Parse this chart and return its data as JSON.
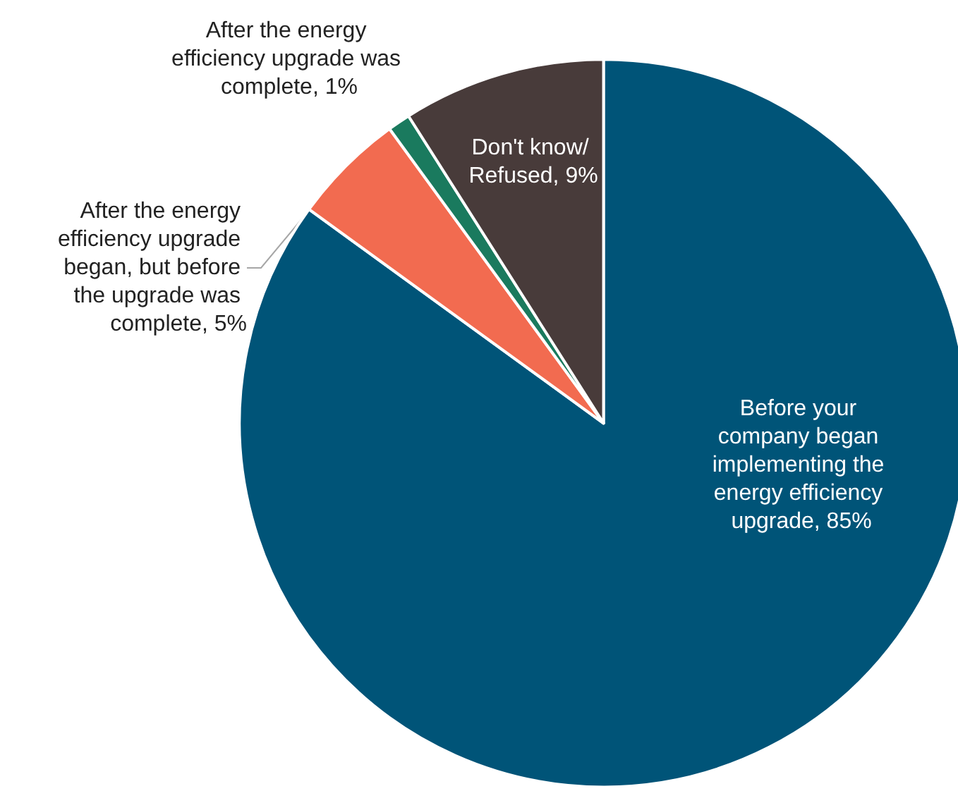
{
  "chart_data": {
    "type": "pie",
    "categories": [
      "Before your company began implementing the energy efficiency upgrade",
      "After the energy efficiency upgrade began, but before the upgrade was complete",
      "After the energy efficiency upgrade was complete",
      "Don't know/ Refused"
    ],
    "values": [
      85,
      5,
      1,
      9
    ],
    "value_labels": [
      "85%",
      "5%",
      "1%",
      "9%"
    ],
    "colors": [
      "#005478",
      "#f26b50",
      "#1a7a5e",
      "#483b3a"
    ]
  }
}
